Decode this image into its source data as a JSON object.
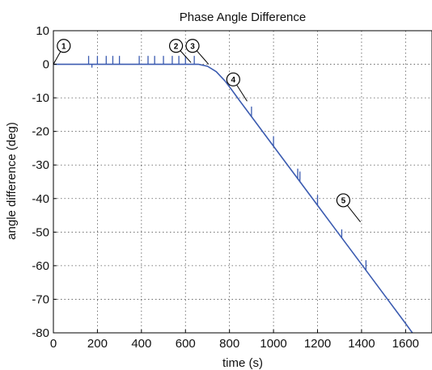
{
  "chart_data": {
    "type": "line",
    "title": "Phase Angle Difference",
    "xlabel": "time (s)",
    "ylabel": "angle difference (deg)",
    "xlim": [
      0,
      1720
    ],
    "ylim": [
      -80,
      10
    ],
    "xticks": [
      0,
      200,
      400,
      600,
      800,
      1000,
      1200,
      1400,
      1600
    ],
    "yticks": [
      10,
      0,
      -10,
      -20,
      -30,
      -40,
      -50,
      -60,
      -70,
      -80
    ],
    "grid": true,
    "line_color": "#3b5bb0",
    "series": [
      {
        "x": [
          0,
          160,
          400,
          620,
          660,
          700,
          740,
          780,
          810,
          850,
          900,
          1000,
          1100,
          1200,
          1300,
          1400,
          1500,
          1600,
          1720
        ],
        "values": [
          0,
          0,
          0,
          0,
          0,
          -0.6,
          -2.2,
          -5,
          -7.6,
          -11.2,
          -15.6,
          -24.4,
          -33.2,
          -42,
          -50.8,
          -59.6,
          -68.4,
          -77.2,
          -88
        ]
      }
    ],
    "spikes": [
      {
        "x": 160,
        "dy": 2.5
      },
      {
        "x": 175,
        "dy": -1.0
      },
      {
        "x": 200,
        "dy": 2.5
      },
      {
        "x": 240,
        "dy": 2.5
      },
      {
        "x": 270,
        "dy": 2.5
      },
      {
        "x": 300,
        "dy": 2.5
      },
      {
        "x": 390,
        "dy": 2.5
      },
      {
        "x": 430,
        "dy": 2.5
      },
      {
        "x": 460,
        "dy": 2.5
      },
      {
        "x": 500,
        "dy": 2.5
      },
      {
        "x": 540,
        "dy": 2.5
      },
      {
        "x": 570,
        "dy": 2.5
      },
      {
        "x": 600,
        "dy": 2.5
      },
      {
        "x": 640,
        "dy": 2.5
      },
      {
        "x": 900,
        "dy": 3.0
      },
      {
        "x": 1000,
        "dy": 3.0
      },
      {
        "x": 1110,
        "dy": 3.0
      },
      {
        "x": 1120,
        "dy": 3.0
      },
      {
        "x": 1200,
        "dy": 3.0
      },
      {
        "x": 1310,
        "dy": 2.5
      },
      {
        "x": 1420,
        "dy": 3.0
      }
    ],
    "annotations": [
      {
        "label": "1",
        "x": 150,
        "y": 5,
        "target_x": 0,
        "target_y": 0
      },
      {
        "label": "2",
        "x": 660,
        "y": 5,
        "target_x": 625,
        "target_y": 0.5
      },
      {
        "label": "3",
        "x": 735,
        "y": 5,
        "target_x": 705,
        "target_y": 0
      },
      {
        "label": "4",
        "x": 920,
        "y": -5,
        "target_x": 880,
        "target_y": -11
      },
      {
        "label": "5",
        "x": 1420,
        "y": -41,
        "target_x": 1395,
        "target_y": -47
      }
    ]
  }
}
